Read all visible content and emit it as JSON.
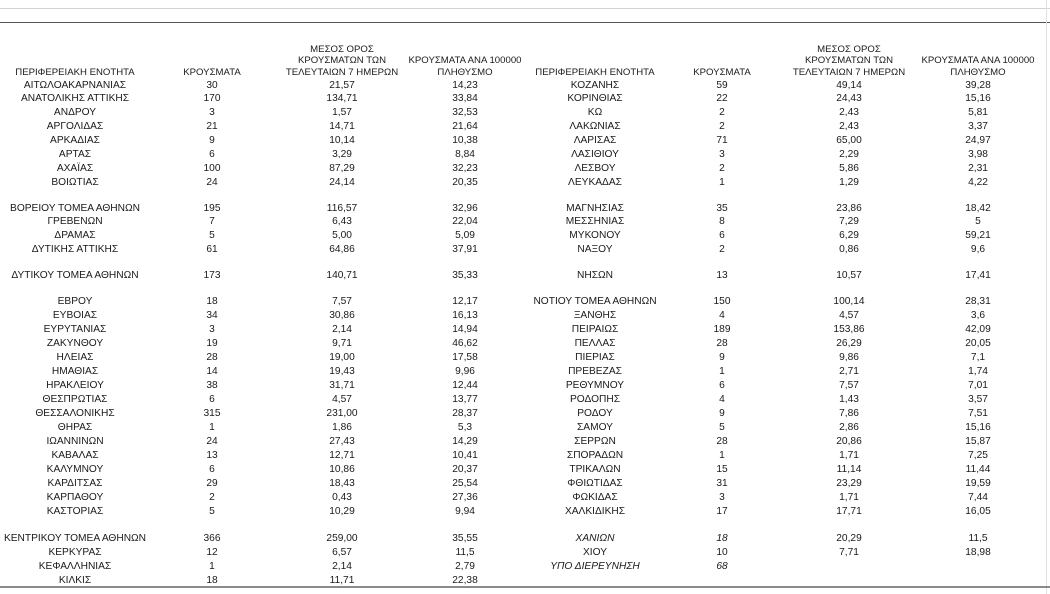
{
  "headers": {
    "left": [
      "ΠΕΡΙΦΕΡΕΙΑΚΗ ΕΝΟΤΗΤΑ",
      "ΚΡΟΥΣΜΑΤΑ",
      "ΜΕΣΟΣ ΟΡΟΣ\nΚΡΟΥΣΜΑΤΩΝ ΤΩΝ\nΤΕΛΕΥΤΑΙΩΝ 7 ΗΜΕΡΩΝ",
      "ΚΡΟΥΣΜΑΤΑ ΑΝΑ 100000\nΠΛΗΘΥΣΜΟ"
    ],
    "right": [
      "ΠΕΡΙΦΕΡΕΙΑΚΗ ΕΝΟΤΗΤΑ",
      "ΚΡΟΥΣΜΑΤΑ",
      "ΜΕΣΟΣ ΟΡΟΣ\nΚΡΟΥΣΜΑΤΩΝ ΤΩΝ\nΤΕΛΕΥΤΑΙΩΝ 7 ΗΜΕΡΩΝ",
      "ΚΡΟΥΣΜΑΤΑ ΑΝΑ 100000\nΠΛΗΘΥΣΜΟ"
    ]
  },
  "left_rows": [
    [
      "ΑΙΤΩΛΟΑΚΑΡΝΑΝΙΑΣ",
      "30",
      "21,57",
      "14,23"
    ],
    [
      "ΑΝΑΤΟΛΙΚΗΣ ΑΤΤΙΚΗΣ",
      "170",
      "134,71",
      "33,84"
    ],
    [
      "ΑΝΔΡΟΥ",
      "3",
      "1,57",
      "32,53"
    ],
    [
      "ΑΡΓΟΛΙΔΑΣ",
      "21",
      "14,71",
      "21,64"
    ],
    [
      "ΑΡΚΑΔΙΑΣ",
      "9",
      "10,14",
      "10,38"
    ],
    [
      "ΑΡΤΑΣ",
      "6",
      "3,29",
      "8,84"
    ],
    [
      "ΑΧΑΪΑΣ",
      "100",
      "87,29",
      "32,23"
    ],
    [
      "ΒΟΙΩΤΙΑΣ",
      "24",
      "24,14",
      "20,35"
    ],
    [
      "ΒΟΡΕΙΟΥ ΤΟΜΕΑ ΑΘΗΝΩΝ",
      "195",
      "116,57",
      "32,96"
    ],
    [
      "ΓΡΕΒΕΝΩΝ",
      "7",
      "6,43",
      "22,04"
    ],
    [
      "ΔΡΑΜΑΣ",
      "5",
      "5,00",
      "5,09"
    ],
    [
      "ΔΥΤΙΚΗΣ ΑΤΤΙΚΗΣ",
      "61",
      "64,86",
      "37,91"
    ],
    [
      "ΔΥΤΙΚΟΥ ΤΟΜΕΑ ΑΘΗΝΩΝ",
      "173",
      "140,71",
      "35,33"
    ],
    [
      "ΕΒΡΟΥ",
      "18",
      "7,57",
      "12,17"
    ],
    [
      "ΕΥΒΟΙΑΣ",
      "34",
      "30,86",
      "16,13"
    ],
    [
      "ΕΥΡΥΤΑΝΙΑΣ",
      "3",
      "2,14",
      "14,94"
    ],
    [
      "ΖΑΚΥΝΘΟΥ",
      "19",
      "9,71",
      "46,62"
    ],
    [
      "ΗΛΕΙΑΣ",
      "28",
      "19,00",
      "17,58"
    ],
    [
      "ΗΜΑΘΙΑΣ",
      "14",
      "19,43",
      "9,96"
    ],
    [
      "ΗΡΑΚΛΕΙΟΥ",
      "38",
      "31,71",
      "12,44"
    ],
    [
      "ΘΕΣΠΡΩΤΙΑΣ",
      "6",
      "4,57",
      "13,77"
    ],
    [
      "ΘΕΣΣΑΛΟΝΙΚΗΣ",
      "315",
      "231,00",
      "28,37"
    ],
    [
      "ΘΗΡΑΣ",
      "1",
      "1,86",
      "5,3"
    ],
    [
      "ΙΩΑΝΝΙΝΩΝ",
      "24",
      "27,43",
      "14,29"
    ],
    [
      "ΚΑΒΑΛΑΣ",
      "13",
      "12,71",
      "10,41"
    ],
    [
      "ΚΑΛΥΜΝΟΥ",
      "6",
      "10,86",
      "20,37"
    ],
    [
      "ΚΑΡΔΙΤΣΑΣ",
      "29",
      "18,43",
      "25,54"
    ],
    [
      "ΚΑΡΠΑΘΟΥ",
      "2",
      "0,43",
      "27,36"
    ],
    [
      "ΚΑΣΤΟΡΙΑΣ",
      "5",
      "10,29",
      "9,94"
    ],
    [
      "ΚΕΝΤΡΙΚΟΥ ΤΟΜΕΑ ΑΘΗΝΩΝ",
      "366",
      "259,00",
      "35,55"
    ],
    [
      "ΚΕΡΚΥΡΑΣ",
      "12",
      "6,57",
      "11,5"
    ],
    [
      "ΚΕΦΑΛΛΗΝΙΑΣ",
      "1",
      "2,14",
      "2,79"
    ],
    [
      "ΚΙΛΚΙΣ",
      "18",
      "11,71",
      "22,38"
    ]
  ],
  "right_rows": [
    [
      "ΚΟΖΑΝΗΣ",
      "59",
      "49,14",
      "39,28"
    ],
    [
      "ΚΟΡΙΝΘΙΑΣ",
      "22",
      "24,43",
      "15,16"
    ],
    [
      "ΚΩ",
      "2",
      "2,43",
      "5,81"
    ],
    [
      "ΛΑΚΩΝΙΑΣ",
      "2",
      "2,43",
      "3,37"
    ],
    [
      "ΛΑΡΙΣΑΣ",
      "71",
      "65,00",
      "24,97"
    ],
    [
      "ΛΑΣΙΘΙΟΥ",
      "3",
      "2,29",
      "3,98"
    ],
    [
      "ΛΕΣΒΟΥ",
      "2",
      "5,86",
      "2,31"
    ],
    [
      "ΛΕΥΚΑΔΑΣ",
      "1",
      "1,29",
      "4,22"
    ],
    [
      "ΜΑΓΝΗΣΙΑΣ",
      "35",
      "23,86",
      "18,42"
    ],
    [
      "ΜΕΣΣΗΝΙΑΣ",
      "8",
      "7,29",
      "5"
    ],
    [
      "ΜΥΚΟΝΟΥ",
      "6",
      "6,29",
      "59,21"
    ],
    [
      "ΝΑΞΟΥ",
      "2",
      "0,86",
      "9,6"
    ],
    [
      "ΝΗΣΩΝ",
      "13",
      "10,57",
      "17,41"
    ],
    [
      "ΝΟΤΙΟΥ ΤΟΜΕΑ ΑΘΗΝΩΝ",
      "150",
      "100,14",
      "28,31"
    ],
    [
      "ΞΑΝΘΗΣ",
      "4",
      "4,57",
      "3,6"
    ],
    [
      "ΠΕΙΡΑΙΩΣ",
      "189",
      "153,86",
      "42,09"
    ],
    [
      "ΠΕΛΛΑΣ",
      "28",
      "26,29",
      "20,05"
    ],
    [
      "ΠΙΕΡΙΑΣ",
      "9",
      "9,86",
      "7,1"
    ],
    [
      "ΠΡΕΒΕΖΑΣ",
      "1",
      "2,71",
      "1,74"
    ],
    [
      "ΡΕΘΥΜΝΟΥ",
      "6",
      "7,57",
      "7,01"
    ],
    [
      "ΡΟΔΟΠΗΣ",
      "4",
      "1,43",
      "3,57"
    ],
    [
      "ΡΟΔΟΥ",
      "9",
      "7,86",
      "7,51"
    ],
    [
      "ΣΑΜΟΥ",
      "5",
      "2,86",
      "15,16"
    ],
    [
      "ΣΕΡΡΩΝ",
      "28",
      "20,86",
      "15,87"
    ],
    [
      "ΣΠΟΡΑΔΩΝ",
      "1",
      "1,71",
      "7,25"
    ],
    [
      "ΤΡΙΚΑΛΩΝ",
      "15",
      "11,14",
      "11,44"
    ],
    [
      "ΦΘΙΩΤΙΔΑΣ",
      "31",
      "23,29",
      "19,59"
    ],
    [
      "ΦΩΚΙΔΑΣ",
      "3",
      "1,71",
      "7,44"
    ],
    [
      "ΧΑΛΚΙΔΙΚΗΣ",
      "17",
      "17,71",
      "16,05"
    ],
    [
      "ΧΑΝΙΩΝ",
      "18",
      "20,29",
      "11,5"
    ],
    [
      "ΧΙΟΥ",
      "10",
      "7,71",
      "18,98"
    ],
    [
      "ΥΠΟ ΔΙΕΡΕΥΝΗΣΗ",
      "68",
      "",
      ""
    ]
  ]
}
